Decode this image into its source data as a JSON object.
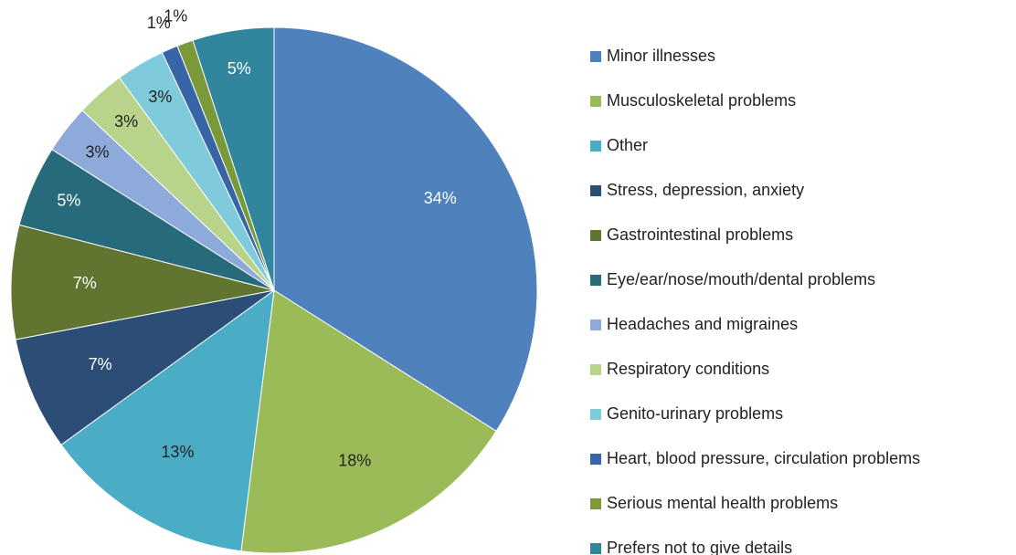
{
  "chart_data": {
    "type": "pie",
    "categories": [
      "Minor illnesses",
      "Musculoskeletal problems",
      "Other",
      "Stress, depression, anxiety",
      "Gastrointestinal problems",
      "Eye/ear/nose/mouth/dental problems",
      "Headaches and migraines",
      "Respiratory conditions",
      "Genito-urinary problems",
      "Heart, blood pressure, circulation problems",
      "Serious mental health problems",
      "Prefers not to give details"
    ],
    "values": [
      34,
      18,
      13,
      7,
      7,
      5,
      3,
      3,
      3,
      1,
      1,
      5
    ],
    "value_labels": [
      "34%",
      "18%",
      "13%",
      "7%",
      "7%",
      "5%",
      "3%",
      "3%",
      "3%",
      "1%",
      "1%",
      "5%"
    ],
    "colors": [
      "#4f81bd",
      "#9bbb59",
      "#4bacc6",
      "#2c4d75",
      "#5f7530",
      "#276a7c",
      "#8eaadb",
      "#b7d48a",
      "#7fcbdc",
      "#3864a8",
      "#7a9a3a",
      "#31859c"
    ],
    "legend": "right"
  }
}
